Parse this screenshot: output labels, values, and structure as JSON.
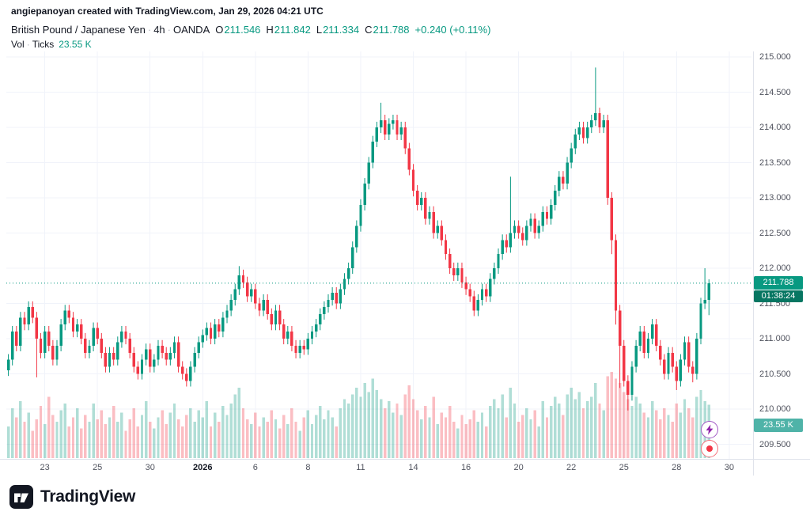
{
  "attribution": "angiepanoyan created with TradingView.com, Jan 29, 2026 04:21 UTC",
  "legend": {
    "symbol": "British Pound / Japanese Yen",
    "interval": "4h",
    "exchange": "OANDA",
    "sep": "·",
    "o_label": "O",
    "o_value": "211.546",
    "h_label": "H",
    "h_value": "211.842",
    "l_label": "L",
    "l_value": "211.334",
    "c_label": "C",
    "c_value": "211.788",
    "change": "+0.240 (+0.11%)",
    "vol_label": "Vol",
    "vol_type": "Ticks",
    "vol_value": "23.55 K"
  },
  "badges": {
    "price": "211.788",
    "countdown": "01:38:24",
    "volume": "23.55 K"
  },
  "price_axis": {
    "ticks": [
      {
        "text": "215.000",
        "value": 215.0
      },
      {
        "text": "214.500",
        "value": 214.5
      },
      {
        "text": "214.000",
        "value": 214.0
      },
      {
        "text": "213.500",
        "value": 213.5
      },
      {
        "text": "213.000",
        "value": 213.0
      },
      {
        "text": "212.500",
        "value": 212.5
      },
      {
        "text": "212.000",
        "value": 212.0
      },
      {
        "text": "211.500",
        "value": 211.5
      },
      {
        "text": "211.000",
        "value": 211.0
      },
      {
        "text": "210.500",
        "value": 210.5
      },
      {
        "text": "210.000",
        "value": 210.0
      },
      {
        "text": "209.500",
        "value": 209.5
      }
    ]
  },
  "time_axis": {
    "ticks": [
      {
        "text": "23",
        "slot": 9
      },
      {
        "text": "25",
        "slot": 22
      },
      {
        "text": "30",
        "slot": 35
      },
      {
        "text": "2026",
        "slot": 48,
        "bold": true
      },
      {
        "text": "6",
        "slot": 61
      },
      {
        "text": "8",
        "slot": 74
      },
      {
        "text": "11",
        "slot": 87
      },
      {
        "text": "14",
        "slot": 100
      },
      {
        "text": "16",
        "slot": 113
      },
      {
        "text": "20",
        "slot": 126
      },
      {
        "text": "22",
        "slot": 139
      },
      {
        "text": "25",
        "slot": 152
      },
      {
        "text": "28",
        "slot": 165
      },
      {
        "text": "30",
        "slot": 178
      }
    ]
  },
  "colors": {
    "up": "#089981",
    "down": "#f23645",
    "grid": "#f0f3fa",
    "axis_text": "#50535e",
    "price_badge_bg": "#089981",
    "countdown_badge_bg": "#077662",
    "volume_badge_bg": "#4fb3a8",
    "boost_accent": "#8e24aa",
    "record_accent": "#f23645",
    "brand_color": "#131722"
  },
  "icons": {
    "boost": "lightning-bolt",
    "record": "record-dot",
    "logo": "tradingview-logo"
  },
  "footer": {
    "brand": "TradingView"
  },
  "chart_data": {
    "type": "candlestick",
    "title": "British Pound / Japanese Yen · 4h · OANDA",
    "volume_overlay": "Vol · Ticks",
    "current_price": 211.788,
    "last_change": 0.24,
    "last_change_pct": 0.11,
    "last_ohlc": {
      "o": 211.546,
      "h": 211.842,
      "l": 211.334,
      "c": 211.788
    },
    "last_volume_k": 23.55,
    "price_axis_range": [
      209.5,
      215.0
    ],
    "x_range_labels": [
      "Dec 23",
      "Jan 30 2026"
    ],
    "slots": 184,
    "volume_scale_max": 40,
    "candle_format": [
      "open",
      "high",
      "low",
      "close",
      "volume_k"
    ],
    "candles": [
      [
        210.55,
        210.78,
        210.47,
        210.7,
        14
      ],
      [
        210.7,
        211.18,
        210.62,
        211.1,
        22
      ],
      [
        211.1,
        211.18,
        210.82,
        210.9,
        18
      ],
      [
        210.9,
        211.38,
        210.82,
        211.3,
        25
      ],
      [
        211.3,
        211.38,
        211.12,
        211.2,
        16
      ],
      [
        211.2,
        211.53,
        211.12,
        211.45,
        20
      ],
      [
        211.45,
        211.53,
        211.22,
        211.3,
        12
      ],
      [
        211.3,
        211.38,
        210.45,
        211.0,
        17
      ],
      [
        211.0,
        211.08,
        210.72,
        210.8,
        23
      ],
      [
        210.8,
        211.18,
        210.72,
        211.1,
        15
      ],
      [
        211.1,
        211.18,
        210.82,
        210.9,
        27
      ],
      [
        210.9,
        210.98,
        210.62,
        210.7,
        19
      ],
      [
        210.7,
        210.98,
        210.62,
        210.9,
        16
      ],
      [
        210.9,
        211.28,
        210.82,
        211.2,
        21
      ],
      [
        211.2,
        211.48,
        211.12,
        211.4,
        24
      ],
      [
        211.4,
        211.48,
        211.22,
        211.3,
        14
      ],
      [
        211.3,
        211.38,
        211.02,
        211.1,
        18
      ],
      [
        211.1,
        211.28,
        211.02,
        211.2,
        22
      ],
      [
        211.2,
        211.28,
        210.92,
        211.0,
        13
      ],
      [
        211.0,
        211.08,
        210.72,
        210.8,
        19
      ],
      [
        210.8,
        210.98,
        210.72,
        210.9,
        16
      ],
      [
        210.9,
        211.23,
        210.82,
        211.15,
        24
      ],
      [
        211.15,
        211.23,
        210.92,
        211.0,
        17
      ],
      [
        211.0,
        211.08,
        210.72,
        210.8,
        21
      ],
      [
        210.8,
        210.88,
        210.52,
        210.6,
        15
      ],
      [
        210.6,
        210.88,
        210.52,
        210.8,
        18
      ],
      [
        210.8,
        210.88,
        210.62,
        210.7,
        23
      ],
      [
        210.7,
        211.03,
        210.62,
        210.95,
        16
      ],
      [
        210.95,
        211.18,
        210.87,
        211.1,
        20
      ],
      [
        211.1,
        211.18,
        210.92,
        211.0,
        12
      ],
      [
        211.0,
        211.08,
        210.72,
        210.8,
        17
      ],
      [
        210.8,
        210.88,
        210.52,
        210.6,
        22
      ],
      [
        210.6,
        210.68,
        210.42,
        210.5,
        14
      ],
      [
        210.5,
        210.78,
        210.42,
        210.7,
        19
      ],
      [
        210.7,
        210.93,
        210.62,
        210.85,
        25
      ],
      [
        210.85,
        210.93,
        210.52,
        210.6,
        16
      ],
      [
        210.6,
        210.78,
        210.52,
        210.7,
        13
      ],
      [
        210.7,
        210.98,
        210.62,
        210.9,
        18
      ],
      [
        210.9,
        210.98,
        210.72,
        210.8,
        21
      ],
      [
        210.8,
        210.88,
        210.62,
        210.7,
        15
      ],
      [
        210.7,
        210.88,
        210.62,
        210.8,
        20
      ],
      [
        210.8,
        211.03,
        210.72,
        210.95,
        24
      ],
      [
        210.95,
        211.03,
        210.52,
        210.6,
        17
      ],
      [
        210.6,
        210.68,
        210.42,
        210.5,
        14
      ],
      [
        210.5,
        210.58,
        210.32,
        210.4,
        19
      ],
      [
        210.4,
        210.68,
        210.32,
        210.6,
        22
      ],
      [
        210.6,
        210.88,
        210.52,
        210.8,
        16
      ],
      [
        210.8,
        211.03,
        210.72,
        210.95,
        21
      ],
      [
        210.95,
        211.13,
        210.87,
        211.05,
        18
      ],
      [
        211.05,
        211.23,
        210.97,
        211.15,
        25
      ],
      [
        211.15,
        211.23,
        210.92,
        211.0,
        14
      ],
      [
        211.0,
        211.28,
        210.92,
        211.2,
        20
      ],
      [
        211.2,
        211.28,
        211.02,
        211.1,
        16
      ],
      [
        211.1,
        211.38,
        211.02,
        211.3,
        23
      ],
      [
        211.3,
        211.48,
        211.22,
        211.4,
        19
      ],
      [
        211.4,
        211.63,
        211.32,
        211.55,
        24
      ],
      [
        211.55,
        211.78,
        211.47,
        211.7,
        28
      ],
      [
        211.7,
        212.03,
        211.62,
        211.9,
        31
      ],
      [
        211.9,
        211.98,
        211.72,
        211.8,
        22
      ],
      [
        211.8,
        211.88,
        211.52,
        211.6,
        17
      ],
      [
        211.6,
        211.78,
        211.52,
        211.7,
        15
      ],
      [
        211.7,
        211.78,
        211.42,
        211.5,
        20
      ],
      [
        211.5,
        211.58,
        211.32,
        211.4,
        14
      ],
      [
        211.4,
        211.63,
        211.32,
        211.55,
        18
      ],
      [
        211.55,
        211.63,
        211.27,
        211.35,
        16
      ],
      [
        211.35,
        211.43,
        211.12,
        211.2,
        21
      ],
      [
        211.2,
        211.48,
        211.12,
        211.4,
        17
      ],
      [
        211.4,
        211.48,
        211.12,
        211.2,
        13
      ],
      [
        211.2,
        211.28,
        210.92,
        211.0,
        19
      ],
      [
        211.0,
        211.18,
        210.92,
        211.1,
        15
      ],
      [
        211.1,
        211.18,
        210.82,
        210.9,
        22
      ],
      [
        210.9,
        210.98,
        210.72,
        210.8,
        16
      ],
      [
        210.8,
        210.98,
        210.72,
        210.9,
        12
      ],
      [
        210.9,
        210.98,
        210.77,
        210.85,
        18
      ],
      [
        210.85,
        211.08,
        210.77,
        211.0,
        21
      ],
      [
        211.0,
        211.18,
        210.92,
        211.1,
        15
      ],
      [
        211.1,
        211.28,
        211.02,
        211.2,
        19
      ],
      [
        211.2,
        211.43,
        211.12,
        211.35,
        23
      ],
      [
        211.35,
        211.53,
        211.27,
        211.45,
        17
      ],
      [
        211.45,
        211.63,
        211.37,
        211.55,
        21
      ],
      [
        211.55,
        211.73,
        211.47,
        211.65,
        18
      ],
      [
        211.65,
        211.73,
        211.42,
        211.5,
        14
      ],
      [
        211.5,
        211.78,
        211.42,
        211.7,
        22
      ],
      [
        211.7,
        211.93,
        211.62,
        211.85,
        26
      ],
      [
        211.85,
        212.08,
        211.77,
        212.0,
        24
      ],
      [
        212.0,
        212.38,
        211.92,
        212.3,
        28
      ],
      [
        212.3,
        212.68,
        212.22,
        212.6,
        31
      ],
      [
        212.6,
        212.98,
        212.52,
        212.9,
        27
      ],
      [
        212.9,
        213.28,
        212.82,
        213.2,
        33
      ],
      [
        213.2,
        213.58,
        213.12,
        213.5,
        29
      ],
      [
        213.5,
        213.88,
        213.42,
        213.8,
        35
      ],
      [
        213.8,
        214.08,
        213.72,
        214.0,
        30
      ],
      [
        214.0,
        214.35,
        213.92,
        214.1,
        26
      ],
      [
        214.1,
        214.18,
        213.82,
        213.9,
        22
      ],
      [
        213.9,
        214.13,
        213.82,
        214.05,
        25
      ],
      [
        214.05,
        214.18,
        213.97,
        214.1,
        20
      ],
      [
        214.1,
        214.18,
        213.82,
        213.9,
        24
      ],
      [
        213.9,
        214.08,
        213.82,
        214.0,
        19
      ],
      [
        214.0,
        214.08,
        213.62,
        213.7,
        28
      ],
      [
        213.7,
        213.78,
        213.32,
        213.4,
        32
      ],
      [
        213.4,
        213.48,
        213.02,
        213.1,
        26
      ],
      [
        213.1,
        213.18,
        212.82,
        212.9,
        21
      ],
      [
        212.9,
        213.08,
        212.82,
        213.0,
        17
      ],
      [
        213.0,
        213.08,
        212.62,
        212.7,
        23
      ],
      [
        212.7,
        212.88,
        212.62,
        212.8,
        18
      ],
      [
        212.8,
        212.88,
        212.42,
        212.5,
        27
      ],
      [
        212.5,
        212.68,
        212.42,
        212.6,
        15
      ],
      [
        212.6,
        212.68,
        212.32,
        212.4,
        20
      ],
      [
        212.4,
        212.48,
        212.12,
        212.2,
        18
      ],
      [
        212.2,
        212.28,
        211.92,
        212.0,
        23
      ],
      [
        212.0,
        212.08,
        211.82,
        211.9,
        16
      ],
      [
        211.9,
        212.08,
        211.82,
        212.0,
        13
      ],
      [
        212.0,
        212.08,
        211.72,
        211.8,
        19
      ],
      [
        211.8,
        211.88,
        211.62,
        211.7,
        15
      ],
      [
        211.7,
        211.78,
        211.52,
        211.6,
        17
      ],
      [
        211.6,
        211.68,
        211.32,
        211.4,
        21
      ],
      [
        211.4,
        211.63,
        211.32,
        211.55,
        16
      ],
      [
        211.55,
        211.78,
        211.47,
        211.7,
        20
      ],
      [
        211.7,
        211.78,
        211.52,
        211.6,
        14
      ],
      [
        211.6,
        211.93,
        211.52,
        211.85,
        23
      ],
      [
        211.85,
        212.08,
        211.77,
        212.0,
        26
      ],
      [
        212.0,
        212.28,
        211.92,
        212.2,
        22
      ],
      [
        212.2,
        212.48,
        212.12,
        212.4,
        28
      ],
      [
        212.4,
        212.48,
        212.22,
        212.3,
        18
      ],
      [
        212.3,
        213.3,
        212.22,
        212.5,
        31
      ],
      [
        212.5,
        212.68,
        212.42,
        212.6,
        24
      ],
      [
        212.6,
        212.68,
        212.42,
        212.5,
        16
      ],
      [
        212.5,
        212.58,
        212.32,
        212.4,
        19
      ],
      [
        212.4,
        212.68,
        212.32,
        212.6,
        22
      ],
      [
        212.6,
        212.78,
        212.52,
        212.7,
        17
      ],
      [
        212.7,
        212.78,
        212.42,
        212.5,
        21
      ],
      [
        212.5,
        212.68,
        212.42,
        212.6,
        14
      ],
      [
        212.6,
        212.88,
        212.52,
        212.8,
        25
      ],
      [
        212.8,
        212.88,
        212.62,
        212.7,
        18
      ],
      [
        212.7,
        212.98,
        212.62,
        212.9,
        23
      ],
      [
        212.9,
        213.18,
        212.82,
        213.1,
        27
      ],
      [
        213.1,
        213.38,
        213.02,
        213.3,
        24
      ],
      [
        213.3,
        213.38,
        213.12,
        213.2,
        19
      ],
      [
        213.2,
        213.58,
        213.12,
        213.5,
        28
      ],
      [
        213.5,
        213.78,
        213.42,
        213.7,
        31
      ],
      [
        213.7,
        213.98,
        213.62,
        213.9,
        26
      ],
      [
        213.9,
        214.08,
        213.82,
        214.0,
        29
      ],
      [
        214.0,
        214.08,
        213.77,
        213.85,
        22
      ],
      [
        213.85,
        214.08,
        213.77,
        214.0,
        25
      ],
      [
        214.0,
        214.18,
        213.92,
        214.1,
        27
      ],
      [
        214.1,
        214.85,
        214.02,
        214.2,
        33
      ],
      [
        214.2,
        214.28,
        213.92,
        214.0,
        24
      ],
      [
        214.0,
        214.18,
        213.92,
        214.1,
        21
      ],
      [
        214.1,
        214.18,
        212.9,
        213.0,
        36
      ],
      [
        213.0,
        213.08,
        212.2,
        212.4,
        38
      ],
      [
        212.4,
        212.48,
        211.2,
        211.4,
        35
      ],
      [
        211.4,
        211.48,
        210.3,
        210.9,
        33
      ],
      [
        210.9,
        210.98,
        210.32,
        210.4,
        29
      ],
      [
        210.4,
        210.48,
        209.98,
        210.2,
        26
      ],
      [
        210.2,
        210.68,
        210.12,
        210.6,
        23
      ],
      [
        210.6,
        210.98,
        210.52,
        210.9,
        27
      ],
      [
        210.9,
        211.18,
        210.82,
        211.1,
        24
      ],
      [
        211.1,
        211.18,
        210.72,
        210.8,
        20
      ],
      [
        210.8,
        211.08,
        210.72,
        211.0,
        18
      ],
      [
        211.0,
        211.28,
        210.92,
        211.2,
        25
      ],
      [
        211.2,
        211.28,
        210.82,
        210.9,
        21
      ],
      [
        210.9,
        210.98,
        210.62,
        210.7,
        17
      ],
      [
        210.7,
        210.78,
        210.42,
        210.5,
        22
      ],
      [
        210.5,
        210.88,
        210.42,
        210.8,
        19
      ],
      [
        210.8,
        210.88,
        210.52,
        210.6,
        16
      ],
      [
        210.6,
        210.68,
        210.27,
        210.4,
        24
      ],
      [
        210.4,
        210.78,
        210.32,
        210.7,
        20
      ],
      [
        210.7,
        211.03,
        210.62,
        210.95,
        26
      ],
      [
        210.95,
        211.03,
        210.52,
        210.6,
        22
      ],
      [
        210.6,
        210.68,
        210.38,
        210.5,
        18
      ],
      [
        210.5,
        211.08,
        210.42,
        211.0,
        27
      ],
      [
        211.0,
        211.58,
        210.92,
        211.5,
        30
      ],
      [
        211.5,
        212.0,
        211.42,
        211.55,
        25
      ],
      [
        211.55,
        211.842,
        211.334,
        211.788,
        23.55
      ]
    ]
  }
}
